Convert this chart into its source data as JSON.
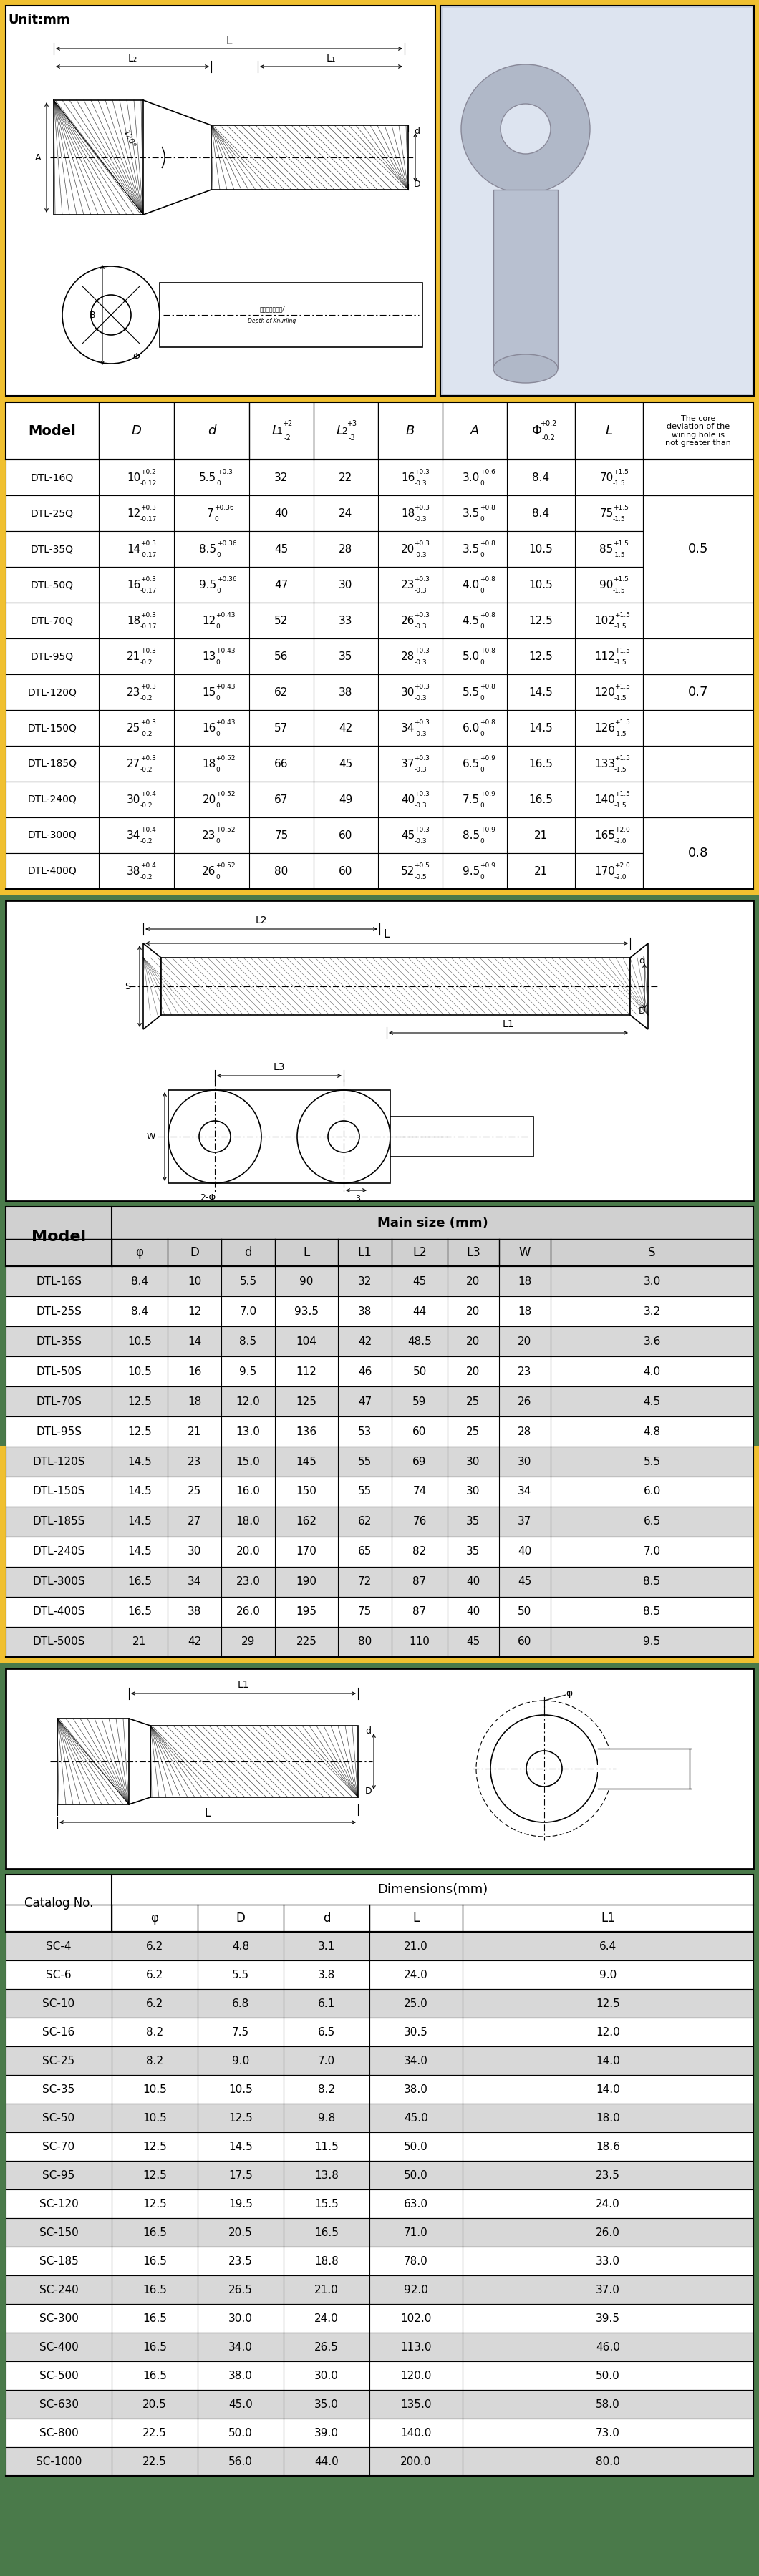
{
  "bg_color_top": "#f0c030",
  "bg_color_mid": "#4a7a4a",
  "bg_color_bot": "#4a7a4a",
  "white": "#ffffff",
  "black": "#000000",
  "gray_row": "#d8d8d8",
  "table1_rows": [
    [
      "DTL-16Q",
      "10",
      "+0.2",
      "-0.12",
      "5.5",
      "+0.3",
      "0",
      "32",
      "22",
      "16",
      "+0.3",
      "-0.3",
      "3.0",
      "+0.6",
      "0",
      "8.4",
      "70",
      "+1.5",
      "-1.5",
      ""
    ],
    [
      "DTL-25Q",
      "12",
      "+0.3",
      "-0.17",
      "7",
      "+0.36",
      "0",
      "40",
      "24",
      "18",
      "+0.3",
      "-0.3",
      "3.5",
      "+0.8",
      "0",
      "8.4",
      "75",
      "+1.5",
      "-1.5",
      "0.5"
    ],
    [
      "DTL-35Q",
      "14",
      "+0.3",
      "-0.17",
      "8.5",
      "+0.36",
      "0",
      "45",
      "28",
      "20",
      "+0.3",
      "-0.3",
      "3.5",
      "+0.8",
      "0",
      "10.5",
      "85",
      "+1.5",
      "-1.5",
      ""
    ],
    [
      "DTL-50Q",
      "16",
      "+0.3",
      "-0.17",
      "9.5",
      "+0.36",
      "0",
      "47",
      "30",
      "23",
      "+0.3",
      "-0.3",
      "4.0",
      "+0.8",
      "0",
      "10.5",
      "90",
      "+1.5",
      "-1.5",
      ""
    ],
    [
      "DTL-70Q",
      "18",
      "+0.3",
      "-0.17",
      "12",
      "+0.43",
      "0",
      "52",
      "33",
      "26",
      "+0.3",
      "-0.3",
      "4.5",
      "+0.8",
      "0",
      "12.5",
      "102",
      "+1.5",
      "-1.5",
      ""
    ],
    [
      "DTL-95Q",
      "21",
      "+0.3",
      "-0.2",
      "13",
      "+0.43",
      "0",
      "56",
      "35",
      "28",
      "+0.3",
      "-0.3",
      "5.0",
      "+0.8",
      "0",
      "12.5",
      "112",
      "+1.5",
      "-1.5",
      ""
    ],
    [
      "DTL-120Q",
      "23",
      "+0.3",
      "-0.2",
      "15",
      "+0.43",
      "0",
      "62",
      "38",
      "30",
      "+0.3",
      "-0.3",
      "5.5",
      "+0.8",
      "0",
      "14.5",
      "120",
      "+1.5",
      "-1.5",
      "0.7"
    ],
    [
      "DTL-150Q",
      "25",
      "+0.3",
      "-0.2",
      "16",
      "+0.43",
      "0",
      "57",
      "42",
      "34",
      "+0.3",
      "-0.3",
      "6.0",
      "+0.8",
      "0",
      "14.5",
      "126",
      "+1.5",
      "-1.5",
      ""
    ],
    [
      "DTL-185Q",
      "27",
      "+0.3",
      "-0.2",
      "18",
      "+0.52",
      "0",
      "66",
      "45",
      "37",
      "+0.3",
      "-0.3",
      "6.5",
      "+0.9",
      "0",
      "16.5",
      "133",
      "+1.5",
      "-1.5",
      ""
    ],
    [
      "DTL-240Q",
      "30",
      "+0.4",
      "-0.2",
      "20",
      "+0.52",
      "0",
      "67",
      "49",
      "40",
      "+0.3",
      "-0.3",
      "7.5",
      "+0.9",
      "0",
      "16.5",
      "140",
      "+1.5",
      "-1.5",
      ""
    ],
    [
      "DTL-300Q",
      "34",
      "+0.4",
      "-0.2",
      "23",
      "+0.52",
      "0",
      "75",
      "60",
      "45",
      "+0.3",
      "-0.3",
      "8.5",
      "+0.9",
      "0",
      "21",
      "165",
      "+2.0",
      "-2.0",
      "0.8"
    ],
    [
      "DTL-400Q",
      "38",
      "+0.4",
      "-0.2",
      "26",
      "+0.52",
      "0",
      "80",
      "60",
      "52",
      "+0.5",
      "-0.5",
      "9.5",
      "+0.9",
      "0",
      "21",
      "170",
      "+2.0",
      "-2.0",
      ""
    ]
  ],
  "table2_rows": [
    [
      "DTL-16S",
      "8.4",
      "10",
      "5.5",
      "90",
      "32",
      "45",
      "20",
      "18",
      "3.0"
    ],
    [
      "DTL-25S",
      "8.4",
      "12",
      "7.0",
      "93.5",
      "38",
      "44",
      "20",
      "18",
      "3.2"
    ],
    [
      "DTL-35S",
      "10.5",
      "14",
      "8.5",
      "104",
      "42",
      "48.5",
      "20",
      "20",
      "3.6"
    ],
    [
      "DTL-50S",
      "10.5",
      "16",
      "9.5",
      "112",
      "46",
      "50",
      "20",
      "23",
      "4.0"
    ],
    [
      "DTL-70S",
      "12.5",
      "18",
      "12.0",
      "125",
      "47",
      "59",
      "25",
      "26",
      "4.5"
    ],
    [
      "DTL-95S",
      "12.5",
      "21",
      "13.0",
      "136",
      "53",
      "60",
      "25",
      "28",
      "4.8"
    ],
    [
      "DTL-120S",
      "14.5",
      "23",
      "15.0",
      "145",
      "55",
      "69",
      "30",
      "30",
      "5.5"
    ],
    [
      "DTL-150S",
      "14.5",
      "25",
      "16.0",
      "150",
      "55",
      "74",
      "30",
      "34",
      "6.0"
    ],
    [
      "DTL-185S",
      "14.5",
      "27",
      "18.0",
      "162",
      "62",
      "76",
      "35",
      "37",
      "6.5"
    ],
    [
      "DTL-240S",
      "14.5",
      "30",
      "20.0",
      "170",
      "65",
      "82",
      "35",
      "40",
      "7.0"
    ],
    [
      "DTL-300S",
      "16.5",
      "34",
      "23.0",
      "190",
      "72",
      "87",
      "40",
      "45",
      "8.5"
    ],
    [
      "DTL-400S",
      "16.5",
      "38",
      "26.0",
      "195",
      "75",
      "87",
      "40",
      "50",
      "8.5"
    ],
    [
      "DTL-500S",
      "21",
      "42",
      "29",
      "225",
      "80",
      "110",
      "45",
      "60",
      "9.5"
    ]
  ],
  "table3_rows": [
    [
      "SC-4",
      "6.2",
      "4.8",
      "3.1",
      "21.0",
      "6.4"
    ],
    [
      "SC-6",
      "6.2",
      "5.5",
      "3.8",
      "24.0",
      "9.0"
    ],
    [
      "SC-10",
      "6.2",
      "6.8",
      "6.1",
      "25.0",
      "12.5"
    ],
    [
      "SC-16",
      "8.2",
      "7.5",
      "6.5",
      "30.5",
      "12.0"
    ],
    [
      "SC-25",
      "8.2",
      "9.0",
      "7.0",
      "34.0",
      "14.0"
    ],
    [
      "SC-35",
      "10.5",
      "10.5",
      "8.2",
      "38.0",
      "14.0"
    ],
    [
      "SC-50",
      "10.5",
      "12.5",
      "9.8",
      "45.0",
      "18.0"
    ],
    [
      "SC-70",
      "12.5",
      "14.5",
      "11.5",
      "50.0",
      "18.6"
    ],
    [
      "SC-95",
      "12.5",
      "17.5",
      "13.8",
      "50.0",
      "23.5"
    ],
    [
      "SC-120",
      "12.5",
      "19.5",
      "15.5",
      "63.0",
      "24.0"
    ],
    [
      "SC-150",
      "16.5",
      "20.5",
      "16.5",
      "71.0",
      "26.0"
    ],
    [
      "SC-185",
      "16.5",
      "23.5",
      "18.8",
      "78.0",
      "33.0"
    ],
    [
      "SC-240",
      "16.5",
      "26.5",
      "21.0",
      "92.0",
      "37.0"
    ],
    [
      "SC-300",
      "16.5",
      "30.0",
      "24.0",
      "102.0",
      "39.5"
    ],
    [
      "SC-400",
      "16.5",
      "34.0",
      "26.5",
      "113.0",
      "46.0"
    ],
    [
      "SC-500",
      "16.5",
      "38.0",
      "30.0",
      "120.0",
      "50.0"
    ],
    [
      "SC-630",
      "20.5",
      "45.0",
      "35.0",
      "135.0",
      "58.0"
    ],
    [
      "SC-800",
      "22.5",
      "50.0",
      "39.0",
      "140.0",
      "73.0"
    ],
    [
      "SC-1000",
      "22.5",
      "56.0",
      "44.0",
      "200.0",
      "80.0"
    ]
  ]
}
